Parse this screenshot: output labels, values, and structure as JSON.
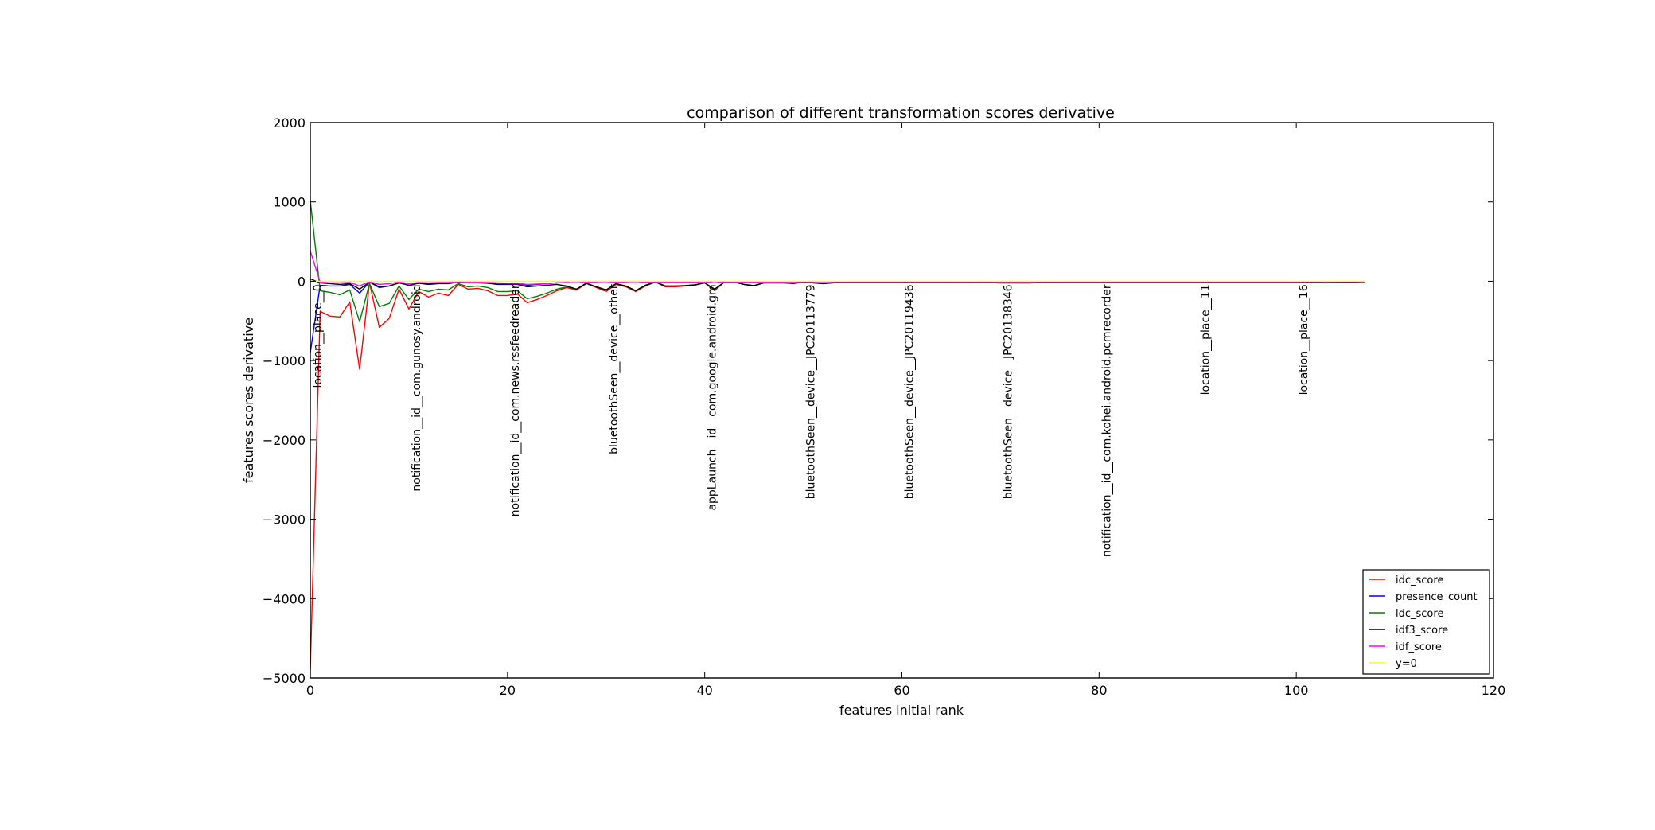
{
  "chart_data": {
    "type": "line",
    "title": "comparison of different transformation scores derivative",
    "xlabel": "features initial rank",
    "ylabel": "features scores derivative",
    "xlim": [
      0,
      120
    ],
    "ylim": [
      -5000,
      2000
    ],
    "xticks": [
      0,
      20,
      40,
      60,
      80,
      100,
      120
    ],
    "yticks": [
      -5000,
      -4000,
      -3000,
      -2000,
      -1000,
      0,
      1000,
      2000
    ],
    "xtick_labels": [
      "0",
      "20",
      "40",
      "60",
      "80",
      "100",
      "120"
    ],
    "ytick_labels": [
      "−5000",
      "−4000",
      "−3000",
      "−2000",
      "−1000",
      "0",
      "1000",
      "2000"
    ],
    "grid": false,
    "legend_position": "lower-right",
    "annotations": [
      {
        "x": 0,
        "text": "location__place__0"
      },
      {
        "x": 10,
        "text": "notification__id__com.gunosy.android"
      },
      {
        "x": 20,
        "text": "notification__id__com.news.rssfeedreader"
      },
      {
        "x": 30,
        "text": "bluetoothSeen__device__other"
      },
      {
        "x": 40,
        "text": "appLaunch__id__com.google.android.gm"
      },
      {
        "x": 50,
        "text": "bluetoothSeen__device__JPC20113779"
      },
      {
        "x": 60,
        "text": "bluetoothSeen__device__JPC20119436"
      },
      {
        "x": 70,
        "text": "bluetoothSeen__device__JPC20138346"
      },
      {
        "x": 80,
        "text": "notification__id__com.kohei.android.pcmrecorder"
      },
      {
        "x": 90,
        "text": "location__place__11"
      },
      {
        "x": 100,
        "text": "location__place__16"
      }
    ],
    "series": [
      {
        "name": "idc_score",
        "color": "#ff0000",
        "points": [
          [
            0,
            -4900
          ],
          [
            1,
            -380
          ],
          [
            2,
            -440
          ],
          [
            3,
            -450
          ],
          [
            4,
            -260
          ],
          [
            5,
            -1110
          ],
          [
            6,
            -20
          ],
          [
            7,
            -580
          ],
          [
            8,
            -470
          ],
          [
            9,
            -100
          ],
          [
            10,
            -350
          ],
          [
            11,
            -130
          ],
          [
            12,
            -200
          ],
          [
            13,
            -150
          ],
          [
            14,
            -180
          ],
          [
            15,
            -40
          ],
          [
            16,
            -100
          ],
          [
            17,
            -90
          ],
          [
            18,
            -120
          ],
          [
            19,
            -180
          ],
          [
            20,
            -180
          ],
          [
            21,
            -160
          ],
          [
            22,
            -270
          ],
          [
            23,
            -230
          ],
          [
            24,
            -180
          ],
          [
            25,
            -120
          ],
          [
            26,
            -80
          ],
          [
            27,
            -110
          ],
          [
            28,
            -30
          ],
          [
            29,
            -80
          ],
          [
            30,
            -130
          ],
          [
            31,
            -40
          ],
          [
            32,
            -70
          ],
          [
            33,
            -130
          ],
          [
            34,
            -60
          ],
          [
            35,
            -10
          ],
          [
            36,
            -70
          ],
          [
            37,
            -70
          ],
          [
            38,
            -60
          ],
          [
            39,
            -50
          ],
          [
            40,
            -20
          ],
          [
            41,
            -120
          ],
          [
            42,
            -10
          ],
          [
            43,
            -10
          ],
          [
            44,
            -40
          ],
          [
            45,
            -60
          ],
          [
            46,
            -20
          ],
          [
            47,
            -20
          ],
          [
            48,
            -20
          ],
          [
            49,
            -30
          ],
          [
            50,
            -10
          ],
          [
            52,
            -30
          ],
          [
            54,
            -10
          ],
          [
            57,
            -10
          ],
          [
            60,
            -10
          ],
          [
            65,
            -10
          ],
          [
            70,
            -20
          ],
          [
            73,
            -20
          ],
          [
            76,
            -10
          ],
          [
            80,
            -10
          ],
          [
            85,
            -10
          ],
          [
            90,
            -10
          ],
          [
            95,
            -10
          ],
          [
            100,
            -10
          ],
          [
            103,
            -10
          ],
          [
            107,
            -5
          ]
        ]
      },
      {
        "name": "presence_count",
        "color": "#0000ff",
        "points": [
          [
            0,
            -900
          ],
          [
            1,
            -50
          ],
          [
            2,
            -60
          ],
          [
            3,
            -60
          ],
          [
            4,
            -40
          ],
          [
            5,
            -150
          ],
          [
            6,
            -10
          ],
          [
            7,
            -80
          ],
          [
            8,
            -60
          ],
          [
            9,
            -20
          ],
          [
            10,
            -50
          ],
          [
            11,
            -20
          ],
          [
            12,
            -30
          ],
          [
            13,
            -20
          ],
          [
            14,
            -20
          ],
          [
            15,
            -10
          ],
          [
            16,
            -15
          ],
          [
            17,
            -15
          ],
          [
            18,
            -20
          ],
          [
            19,
            -25
          ],
          [
            20,
            -30
          ],
          [
            21,
            -30
          ],
          [
            22,
            -50
          ],
          [
            23,
            -40
          ],
          [
            24,
            -30
          ],
          [
            25,
            -20
          ],
          [
            26,
            -15
          ],
          [
            27,
            -20
          ],
          [
            28,
            -10
          ],
          [
            29,
            -15
          ],
          [
            30,
            -20
          ],
          [
            31,
            -10
          ],
          [
            32,
            -15
          ],
          [
            33,
            -20
          ],
          [
            34,
            -10
          ],
          [
            35,
            -5
          ],
          [
            36,
            -10
          ],
          [
            37,
            -10
          ],
          [
            38,
            -10
          ],
          [
            39,
            -10
          ],
          [
            40,
            -5
          ],
          [
            41,
            -20
          ],
          [
            42,
            -5
          ],
          [
            45,
            -10
          ],
          [
            50,
            -5
          ],
          [
            60,
            -5
          ],
          [
            70,
            -5
          ],
          [
            80,
            -5
          ],
          [
            90,
            -5
          ],
          [
            100,
            -5
          ],
          [
            107,
            -3
          ]
        ]
      },
      {
        "name": "ldc_score",
        "color": "#008000",
        "points": [
          [
            0,
            1020
          ],
          [
            1,
            -120
          ],
          [
            2,
            -140
          ],
          [
            3,
            -170
          ],
          [
            4,
            -110
          ],
          [
            5,
            -510
          ],
          [
            6,
            -30
          ],
          [
            7,
            -320
          ],
          [
            8,
            -280
          ],
          [
            9,
            -60
          ],
          [
            10,
            -230
          ],
          [
            11,
            -100
          ],
          [
            12,
            -130
          ],
          [
            13,
            -100
          ],
          [
            14,
            -110
          ],
          [
            15,
            -30
          ],
          [
            16,
            -70
          ],
          [
            17,
            -60
          ],
          [
            18,
            -80
          ],
          [
            19,
            -130
          ],
          [
            20,
            -130
          ],
          [
            21,
            -120
          ],
          [
            22,
            -220
          ],
          [
            23,
            -190
          ],
          [
            24,
            -150
          ],
          [
            25,
            -100
          ],
          [
            26,
            -70
          ],
          [
            27,
            -100
          ],
          [
            28,
            -25
          ],
          [
            29,
            -70
          ],
          [
            30,
            -110
          ],
          [
            31,
            -30
          ],
          [
            32,
            -60
          ],
          [
            33,
            -120
          ],
          [
            34,
            -50
          ],
          [
            35,
            -10
          ],
          [
            36,
            -60
          ],
          [
            37,
            -60
          ],
          [
            38,
            -55
          ],
          [
            39,
            -45
          ],
          [
            40,
            -20
          ],
          [
            41,
            -110
          ],
          [
            42,
            -10
          ],
          [
            43,
            -10
          ],
          [
            44,
            -40
          ],
          [
            45,
            -55
          ],
          [
            46,
            -20
          ],
          [
            47,
            -20
          ],
          [
            48,
            -20
          ],
          [
            49,
            -25
          ],
          [
            50,
            -10
          ],
          [
            52,
            -25
          ],
          [
            54,
            -10
          ],
          [
            57,
            -10
          ],
          [
            60,
            -10
          ],
          [
            65,
            -10
          ],
          [
            70,
            -20
          ],
          [
            73,
            -20
          ],
          [
            76,
            -10
          ],
          [
            80,
            -10
          ],
          [
            85,
            -10
          ],
          [
            90,
            -10
          ],
          [
            95,
            -10
          ],
          [
            100,
            -10
          ],
          [
            103,
            -10
          ],
          [
            107,
            -5
          ]
        ]
      },
      {
        "name": "idf3_score",
        "color": "#000000",
        "points": [
          [
            0,
            30
          ],
          [
            1,
            -20
          ],
          [
            2,
            -30
          ],
          [
            3,
            -40
          ],
          [
            4,
            -30
          ],
          [
            5,
            -100
          ],
          [
            6,
            -10
          ],
          [
            7,
            -70
          ],
          [
            8,
            -60
          ],
          [
            9,
            -20
          ],
          [
            10,
            -50
          ],
          [
            11,
            -25
          ],
          [
            12,
            -40
          ],
          [
            13,
            -30
          ],
          [
            14,
            -30
          ],
          [
            15,
            -10
          ],
          [
            16,
            -20
          ],
          [
            17,
            -20
          ],
          [
            18,
            -25
          ],
          [
            19,
            -40
          ],
          [
            20,
            -40
          ],
          [
            21,
            -40
          ],
          [
            22,
            -70
          ],
          [
            23,
            -60
          ],
          [
            24,
            -50
          ],
          [
            25,
            -40
          ],
          [
            26,
            -60
          ],
          [
            27,
            -100
          ],
          [
            28,
            -25
          ],
          [
            29,
            -70
          ],
          [
            30,
            -110
          ],
          [
            31,
            -30
          ],
          [
            32,
            -60
          ],
          [
            33,
            -120
          ],
          [
            34,
            -50
          ],
          [
            35,
            -10
          ],
          [
            36,
            -60
          ],
          [
            37,
            -60
          ],
          [
            38,
            -55
          ],
          [
            39,
            -45
          ],
          [
            40,
            -20
          ],
          [
            41,
            -100
          ],
          [
            42,
            -10
          ],
          [
            43,
            -10
          ],
          [
            44,
            -40
          ],
          [
            45,
            -55
          ],
          [
            46,
            -20
          ],
          [
            47,
            -20
          ],
          [
            48,
            -20
          ],
          [
            49,
            -25
          ],
          [
            50,
            -10
          ],
          [
            52,
            -30
          ],
          [
            54,
            -10
          ],
          [
            57,
            -10
          ],
          [
            60,
            -10
          ],
          [
            65,
            -10
          ],
          [
            70,
            -20
          ],
          [
            73,
            -20
          ],
          [
            76,
            -10
          ],
          [
            80,
            -10
          ],
          [
            85,
            -10
          ],
          [
            90,
            -10
          ],
          [
            95,
            -10
          ],
          [
            100,
            -10
          ],
          [
            103,
            -20
          ],
          [
            107,
            -5
          ]
        ]
      },
      {
        "name": "idf_score",
        "color": "#ff00ff",
        "points": [
          [
            0,
            380
          ],
          [
            1,
            -10
          ],
          [
            2,
            -20
          ],
          [
            3,
            -20
          ],
          [
            4,
            -15
          ],
          [
            5,
            -60
          ],
          [
            6,
            -5
          ],
          [
            7,
            -40
          ],
          [
            8,
            -30
          ],
          [
            9,
            -10
          ],
          [
            10,
            -30
          ],
          [
            11,
            -15
          ],
          [
            12,
            -20
          ],
          [
            13,
            -15
          ],
          [
            14,
            -15
          ],
          [
            15,
            -5
          ],
          [
            16,
            -10
          ],
          [
            17,
            -10
          ],
          [
            18,
            -15
          ],
          [
            19,
            -20
          ],
          [
            20,
            -25
          ],
          [
            21,
            -25
          ],
          [
            22,
            -40
          ],
          [
            23,
            -35
          ],
          [
            24,
            -30
          ],
          [
            25,
            -20
          ],
          [
            26,
            -15
          ],
          [
            27,
            -20
          ],
          [
            28,
            -10
          ],
          [
            29,
            -15
          ],
          [
            30,
            -20
          ],
          [
            31,
            -10
          ],
          [
            32,
            -15
          ],
          [
            33,
            -20
          ],
          [
            34,
            -10
          ],
          [
            35,
            -5
          ],
          [
            36,
            -10
          ],
          [
            37,
            -10
          ],
          [
            38,
            -10
          ],
          [
            39,
            -10
          ],
          [
            40,
            -5
          ],
          [
            41,
            -20
          ],
          [
            42,
            -5
          ],
          [
            45,
            -10
          ],
          [
            50,
            -5
          ],
          [
            60,
            -5
          ],
          [
            70,
            -5
          ],
          [
            80,
            -5
          ],
          [
            90,
            -5
          ],
          [
            100,
            -5
          ],
          [
            107,
            -3
          ]
        ]
      },
      {
        "name": "y=0",
        "color": "#ffff00",
        "points": [
          [
            0,
            0
          ],
          [
            107,
            0
          ]
        ]
      }
    ]
  }
}
